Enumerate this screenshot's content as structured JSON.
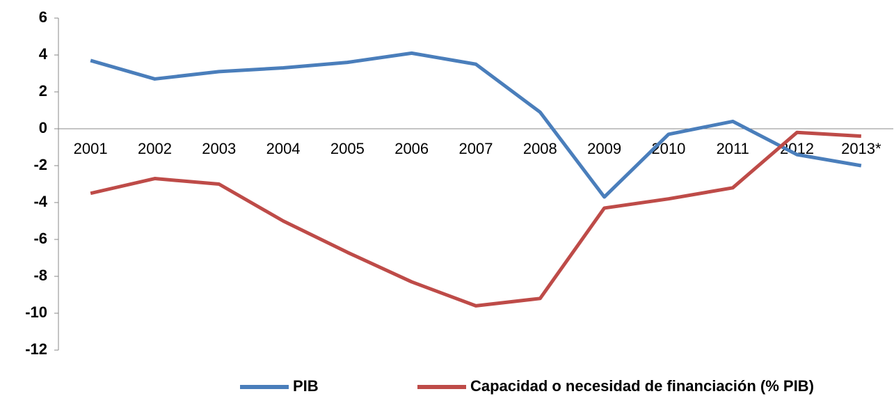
{
  "chart_data": {
    "type": "line",
    "categories": [
      "2001",
      "2002",
      "2003",
      "2004",
      "2005",
      "2006",
      "2007",
      "2008",
      "2009",
      "2010",
      "2011",
      "2012",
      "2013*"
    ],
    "series": [
      {
        "name": "PIB",
        "color": "#4a7ebb",
        "values": [
          3.7,
          2.7,
          3.1,
          3.3,
          3.6,
          4.1,
          3.5,
          0.9,
          -3.7,
          -0.3,
          0.4,
          -1.4,
          -2.0
        ]
      },
      {
        "name": "Capacidad o necesidad de financiación (% PIB)",
        "color": "#be4b48",
        "values": [
          -3.5,
          -2.7,
          -3.0,
          -5.0,
          -6.7,
          -8.3,
          -9.6,
          -9.2,
          -4.3,
          -3.8,
          -3.2,
          -0.2,
          -0.4
        ]
      }
    ],
    "ylim": [
      -12,
      6
    ],
    "yticks": [
      -12,
      -10,
      -8,
      -6,
      -4,
      -2,
      0,
      2,
      4,
      6
    ],
    "legend": "bottom"
  }
}
